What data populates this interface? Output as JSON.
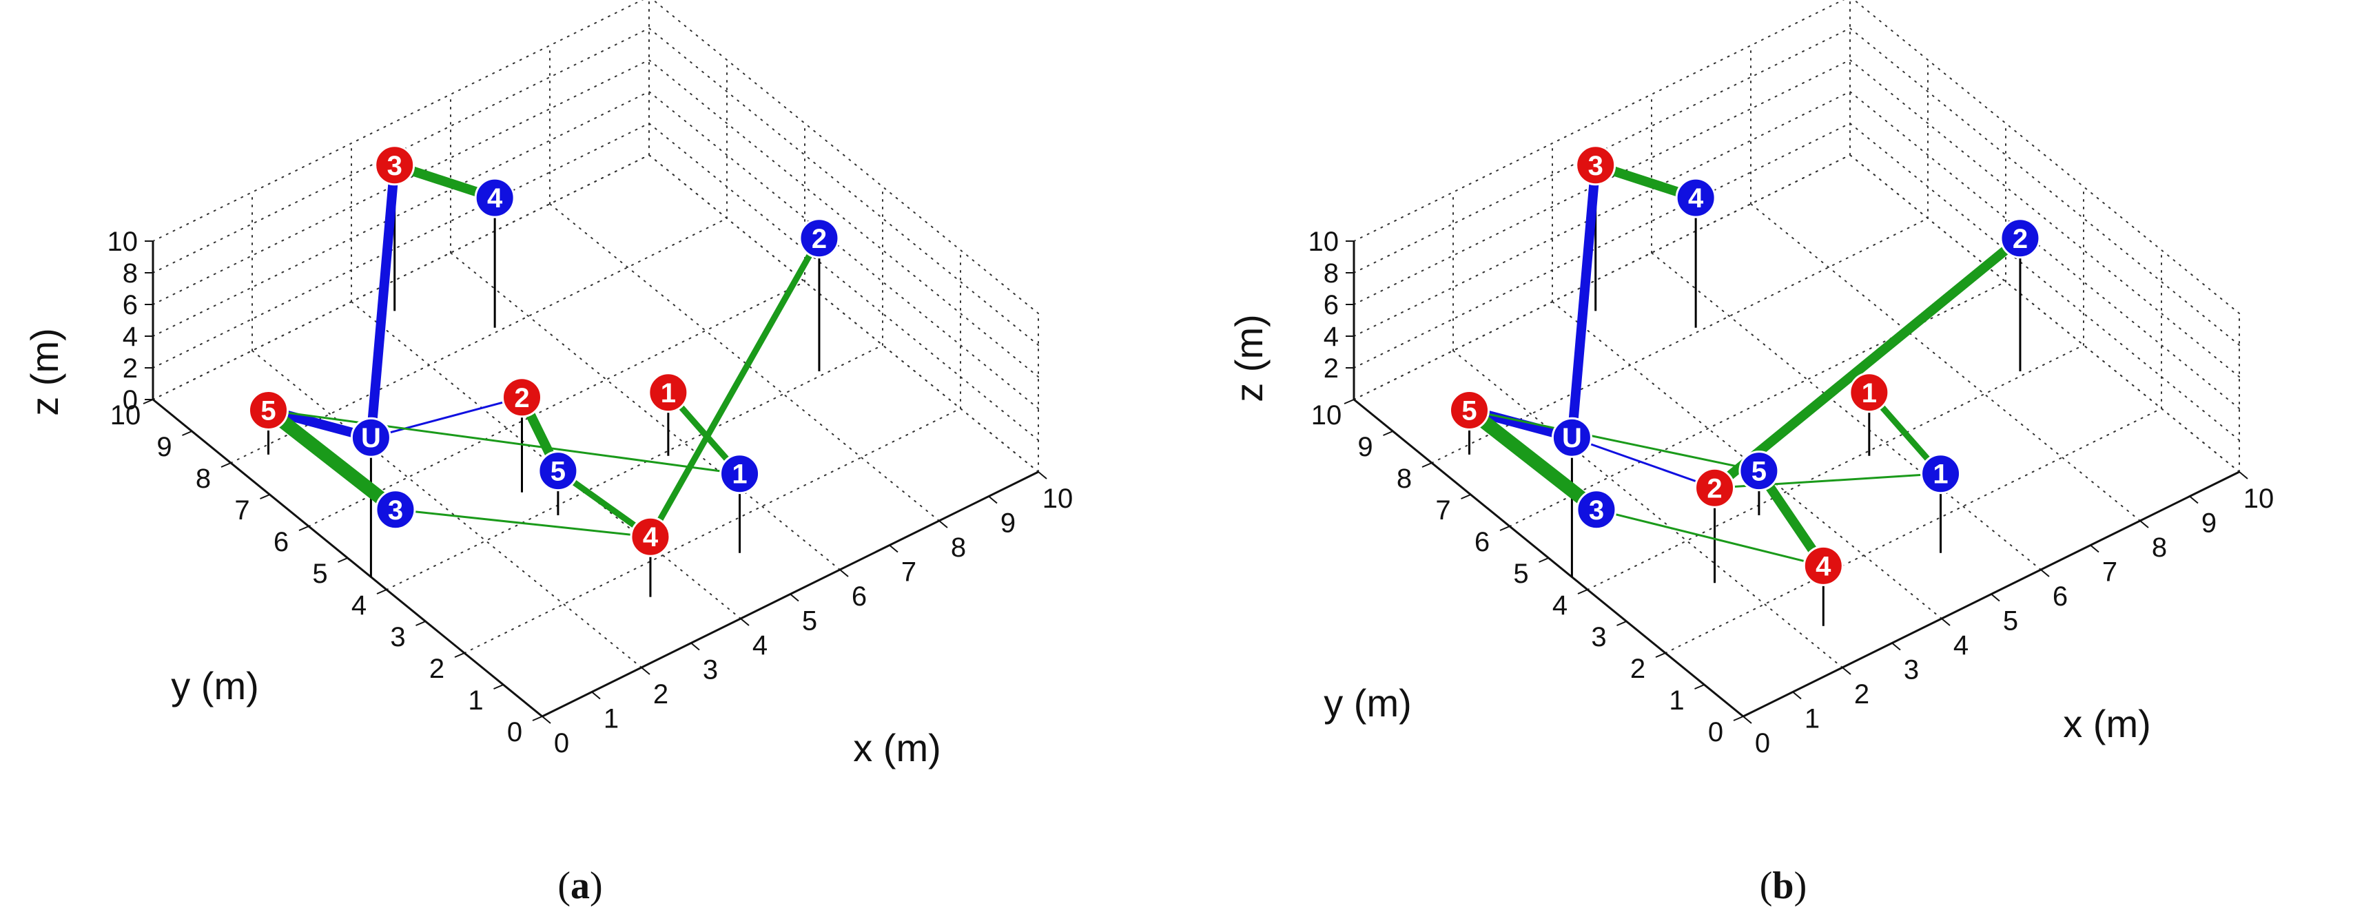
{
  "colors": {
    "uav": "#1010e0",
    "sensor_blue": "#1010e0",
    "sensor_red": "#e01010",
    "uav_link": "#1010e0",
    "sensor_link": "#1a9a1a",
    "grid": "#333333",
    "stem": "#000000"
  },
  "panels": [
    {
      "caption_letter": "a",
      "x_label": "x (m)",
      "y_label": "y (m)",
      "z_label": "z (m)",
      "x_ticks": [
        "0",
        "1",
        "2",
        "3",
        "4",
        "5",
        "6",
        "7",
        "8",
        "9",
        "10"
      ],
      "y_ticks": [
        "0",
        "1",
        "2",
        "3",
        "4",
        "5",
        "6",
        "7",
        "8",
        "9",
        "10"
      ],
      "z_ticks": [
        "0",
        "2",
        "4",
        "6",
        "8",
        "10"
      ]
    },
    {
      "caption_letter": "b",
      "x_label": "x (m)",
      "y_label": "y (m)",
      "z_label": "z (m)",
      "x_ticks": [
        "0",
        "1",
        "2",
        "3",
        "4",
        "5",
        "6",
        "7",
        "8",
        "9",
        "10"
      ],
      "y_ticks": [
        "0",
        "1",
        "2",
        "3",
        "4",
        "5",
        "6",
        "7",
        "8",
        "9",
        "10"
      ],
      "z_ticks": [
        "2",
        "4",
        "6",
        "8",
        "10"
      ]
    }
  ],
  "chart_data": [
    {
      "type": "scatter",
      "panel": "a",
      "projection": "3d",
      "grid": true,
      "axes": {
        "xlabel": "x (m)",
        "ylabel": "y (m)",
        "zlabel": "z (m)",
        "xlim": [
          0,
          10
        ],
        "ylim": [
          0,
          10
        ],
        "zlim": [
          0,
          10
        ]
      },
      "nodes": [
        {
          "id": "U",
          "label": "U",
          "group": "uav",
          "x": 0.0,
          "y": 4.4,
          "z": 8.8
        },
        {
          "id": "R1",
          "label": "1",
          "group": "red",
          "x": 5.6,
          "y": 3.9,
          "z": 4.0
        },
        {
          "id": "R2",
          "label": "2",
          "group": "red",
          "x": 3.2,
          "y": 4.6,
          "z": 6.0
        },
        {
          "id": "R3",
          "label": "3",
          "group": "red",
          "x": 4.4,
          "y": 9.4,
          "z": 9.2
        },
        {
          "id": "R4",
          "label": "4",
          "group": "red",
          "x": 3.2,
          "y": 1.3,
          "z": 3.8
        },
        {
          "id": "R5",
          "label": "5",
          "group": "red",
          "x": 0.6,
          "y": 7.8,
          "z": 2.8
        },
        {
          "id": "B1",
          "label": "1",
          "group": "blue",
          "x": 5.0,
          "y": 1.3,
          "z": 5.0
        },
        {
          "id": "B2",
          "label": "2",
          "group": "blue",
          "x": 8.8,
          "y": 4.1,
          "z": 8.4
        },
        {
          "id": "B3",
          "label": "3",
          "group": "blue",
          "x": 1.2,
          "y": 5.3,
          "z": 0.6
        },
        {
          "id": "B4",
          "label": "4",
          "group": "blue",
          "x": 5.4,
          "y": 8.1,
          "z": 8.2
        },
        {
          "id": "B5",
          "label": "5",
          "group": "blue",
          "x": 3.3,
          "y": 3.8,
          "z": 2.8
        }
      ],
      "edges": [
        {
          "from": "U",
          "to": "R3",
          "kind": "uav_link",
          "weight": 3
        },
        {
          "from": "U",
          "to": "R5",
          "kind": "uav_link",
          "weight": 3
        },
        {
          "from": "U",
          "to": "R2",
          "kind": "uav_link",
          "weight": 1
        },
        {
          "from": "R3",
          "to": "B4",
          "kind": "sensor_link",
          "weight": 3
        },
        {
          "from": "R2",
          "to": "B5",
          "kind": "sensor_link",
          "weight": 3
        },
        {
          "from": "B5",
          "to": "R4",
          "kind": "sensor_link",
          "weight": 2
        },
        {
          "from": "R5",
          "to": "B3",
          "kind": "sensor_link",
          "weight": 4
        },
        {
          "from": "R5",
          "to": "B1",
          "kind": "sensor_link",
          "weight": 1
        },
        {
          "from": "B3",
          "to": "R4",
          "kind": "sensor_link",
          "weight": 1
        },
        {
          "from": "R1",
          "to": "B1",
          "kind": "sensor_link",
          "weight": 2
        },
        {
          "from": "R4",
          "to": "B2",
          "kind": "sensor_link",
          "weight": 2
        }
      ]
    },
    {
      "type": "scatter",
      "panel": "b",
      "projection": "3d",
      "grid": true,
      "axes": {
        "xlabel": "x (m)",
        "ylabel": "y (m)",
        "zlabel": "z (m)",
        "xlim": [
          0,
          10
        ],
        "ylim": [
          0,
          10
        ],
        "zlim": [
          0,
          10
        ]
      },
      "nodes": [
        {
          "id": "U",
          "label": "U",
          "group": "uav",
          "x": 0.0,
          "y": 4.4,
          "z": 8.8
        },
        {
          "id": "R1",
          "label": "1",
          "group": "red",
          "x": 5.6,
          "y": 3.9,
          "z": 4.0
        },
        {
          "id": "R2",
          "label": "2",
          "group": "red",
          "x": 1.7,
          "y": 2.9,
          "z": 6.0
        },
        {
          "id": "R3",
          "label": "3",
          "group": "red",
          "x": 4.4,
          "y": 9.4,
          "z": 9.2
        },
        {
          "id": "R4",
          "label": "4",
          "group": "red",
          "x": 2.4,
          "y": 1.0,
          "z": 3.8
        },
        {
          "id": "R5",
          "label": "5",
          "group": "red",
          "x": 0.6,
          "y": 7.8,
          "z": 2.8
        },
        {
          "id": "B1",
          "label": "1",
          "group": "blue",
          "x": 5.0,
          "y": 1.3,
          "z": 5.0
        },
        {
          "id": "B2",
          "label": "2",
          "group": "blue",
          "x": 8.8,
          "y": 4.1,
          "z": 8.4
        },
        {
          "id": "B3",
          "label": "3",
          "group": "blue",
          "x": 1.2,
          "y": 5.3,
          "z": 0.6
        },
        {
          "id": "B4",
          "label": "4",
          "group": "blue",
          "x": 5.4,
          "y": 8.1,
          "z": 8.2
        },
        {
          "id": "B5",
          "label": "5",
          "group": "blue",
          "x": 3.3,
          "y": 3.8,
          "z": 2.8
        }
      ],
      "edges": [
        {
          "from": "U",
          "to": "R3",
          "kind": "uav_link",
          "weight": 3
        },
        {
          "from": "U",
          "to": "R5",
          "kind": "uav_link",
          "weight": 3
        },
        {
          "from": "U",
          "to": "R2",
          "kind": "uav_link",
          "weight": 1
        },
        {
          "from": "R3",
          "to": "B4",
          "kind": "sensor_link",
          "weight": 3
        },
        {
          "from": "R2",
          "to": "B2",
          "kind": "sensor_link",
          "weight": 3
        },
        {
          "from": "R2",
          "to": "B1",
          "kind": "sensor_link",
          "weight": 1
        },
        {
          "from": "R1",
          "to": "B1",
          "kind": "sensor_link",
          "weight": 2
        },
        {
          "from": "R5",
          "to": "B5",
          "kind": "sensor_link",
          "weight": 1
        },
        {
          "from": "R5",
          "to": "B3",
          "kind": "sensor_link",
          "weight": 4
        },
        {
          "from": "B3",
          "to": "R4",
          "kind": "sensor_link",
          "weight": 1
        },
        {
          "from": "B5",
          "to": "R4",
          "kind": "sensor_link",
          "weight": 3
        }
      ]
    }
  ]
}
